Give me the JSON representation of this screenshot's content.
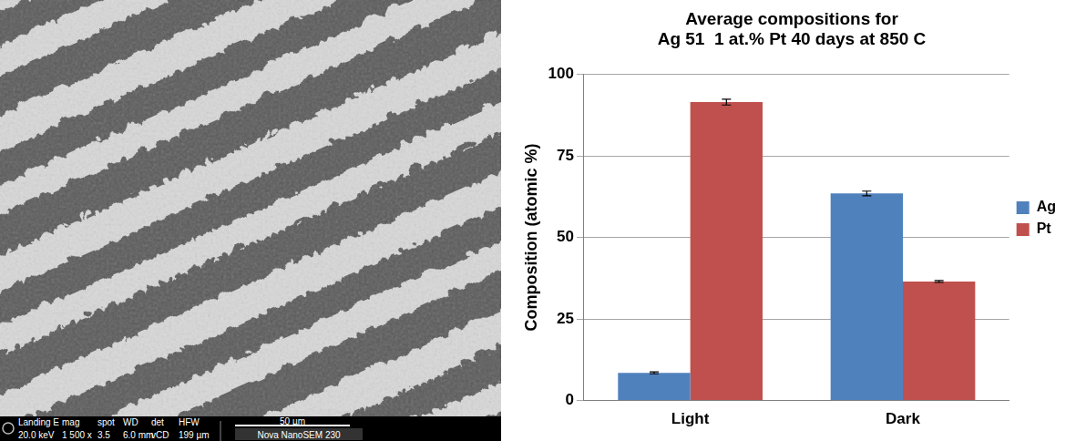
{
  "chart_data": {
    "type": "bar",
    "title": [
      "Average compositions for",
      "Ag 51  1 at.% Pt 40 days at 850 C"
    ],
    "y_label": "Composition (atomic %)",
    "categories": [
      "Light",
      "Dark"
    ],
    "series": [
      {
        "name": "Ag",
        "color": "#4f81bd",
        "values": [
          8.5,
          63.5
        ],
        "errors": [
          0.3,
          0.7
        ]
      },
      {
        "name": "Pt",
        "color": "#c0504d",
        "values": [
          91.5,
          36.5
        ],
        "errors": [
          0.9,
          0.3
        ]
      }
    ],
    "ylim": [
      0,
      100
    ],
    "yticks": [
      0,
      25,
      50,
      75,
      100
    ],
    "grid": true,
    "legend": "right"
  },
  "micrograph": {
    "info_bar": {
      "labels": [
        "Landing E",
        "mag",
        "spot",
        "WD",
        "det",
        "HFW"
      ],
      "values": [
        "20.0 keV",
        "1 500 x",
        "3.5",
        "6.0 mm",
        "vCD",
        "199 µm"
      ]
    },
    "scale_bar": "50 µm",
    "instrument": "Nova NanoSEM 230"
  }
}
